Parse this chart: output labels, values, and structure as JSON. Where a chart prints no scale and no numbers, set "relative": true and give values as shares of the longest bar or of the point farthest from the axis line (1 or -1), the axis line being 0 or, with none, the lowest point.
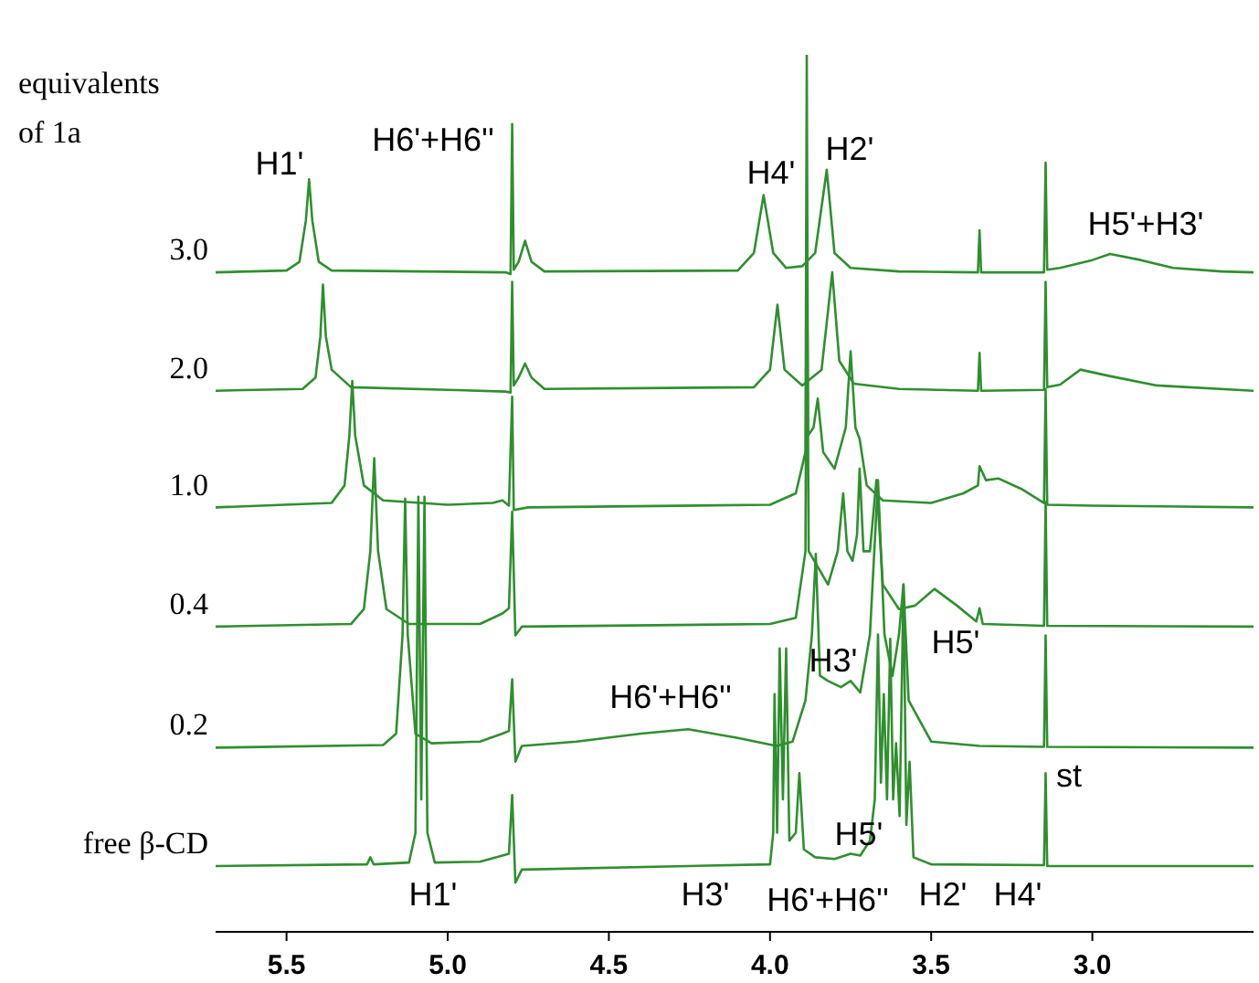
{
  "chart_data": {
    "type": "line",
    "relative": true,
    "legend_title": "equivalents of 1a",
    "tick_labels": "x",
    "xlim": [
      5.72,
      2.5
    ],
    "xticks": [
      5.5,
      {
        "value": 5.0,
        "label": "5.0"
      },
      4.5,
      {
        "value": 4.0,
        "label": "4.0"
      },
      3.5,
      {
        "value": 3.0,
        "label": "3.0"
      }
    ],
    "series": [
      {
        "name": "3.0",
        "color": "#2f8f2f",
        "x": [
          5.72,
          5.5,
          5.46,
          5.44,
          5.43,
          5.42,
          5.4,
          5.36,
          4.82,
          4.805,
          4.8,
          4.795,
          4.78,
          4.76,
          4.74,
          4.7,
          4.1,
          4.05,
          4.02,
          3.99,
          3.95,
          3.9,
          3.86,
          3.824,
          3.8,
          3.75,
          3.6,
          3.355,
          3.35,
          3.345,
          3.15,
          3.145,
          3.14,
          3.1,
          3.0,
          2.945,
          2.85,
          2.75,
          2.6,
          2.5
        ],
        "values": [
          0.752,
          0.754,
          0.764,
          0.811,
          0.858,
          0.811,
          0.764,
          0.754,
          0.752,
          0.75,
          0.921,
          0.755,
          0.764,
          0.788,
          0.764,
          0.753,
          0.754,
          0.774,
          0.84,
          0.774,
          0.757,
          0.759,
          0.774,
          0.869,
          0.774,
          0.757,
          0.753,
          0.752,
          0.8,
          0.752,
          0.752,
          0.877,
          0.755,
          0.757,
          0.766,
          0.773,
          0.766,
          0.757,
          0.753,
          0.752
        ]
      },
      {
        "name": "2.0",
        "color": "#2f8f2f",
        "x": [
          5.72,
          5.45,
          5.41,
          5.395,
          5.387,
          5.378,
          5.36,
          5.3,
          5.0,
          4.82,
          4.805,
          4.8,
          4.795,
          4.78,
          4.76,
          4.74,
          4.7,
          4.05,
          4.0,
          3.977,
          3.955,
          3.9,
          3.84,
          3.807,
          3.785,
          3.74,
          3.6,
          3.355,
          3.35,
          3.345,
          3.15,
          3.145,
          3.14,
          3.1,
          3.037,
          2.95,
          2.8,
          2.5
        ],
        "values": [
          0.617,
          0.619,
          0.632,
          0.679,
          0.738,
          0.679,
          0.641,
          0.621,
          0.618,
          0.616,
          0.615,
          0.741,
          0.623,
          0.632,
          0.648,
          0.632,
          0.619,
          0.621,
          0.641,
          0.715,
          0.641,
          0.623,
          0.641,
          0.752,
          0.651,
          0.625,
          0.619,
          0.617,
          0.66,
          0.617,
          0.618,
          0.741,
          0.621,
          0.624,
          0.641,
          0.634,
          0.623,
          0.617
        ]
      },
      {
        "name": "1.0",
        "color": "#2f8f2f",
        "x": [
          5.72,
          5.36,
          5.32,
          5.305,
          5.296,
          5.287,
          5.26,
          5.2,
          5.0,
          4.86,
          4.83,
          4.81,
          4.8,
          4.795,
          4.75,
          4.0,
          3.92,
          3.89,
          3.886,
          3.882,
          3.865,
          3.852,
          3.835,
          3.8,
          3.765,
          3.75,
          3.735,
          3.722,
          3.7,
          3.65,
          3.5,
          3.4,
          3.355,
          3.35,
          3.33,
          3.292,
          3.22,
          3.15,
          3.145,
          3.14,
          3.0,
          2.5
        ],
        "values": [
          0.484,
          0.489,
          0.509,
          0.566,
          0.628,
          0.566,
          0.509,
          0.492,
          0.487,
          0.489,
          0.492,
          0.486,
          0.61,
          0.481,
          0.484,
          0.487,
          0.5,
          0.547,
          1.0,
          0.566,
          0.575,
          0.608,
          0.547,
          0.528,
          0.575,
          0.662,
          0.575,
          0.562,
          0.509,
          0.492,
          0.489,
          0.5,
          0.509,
          0.531,
          0.515,
          0.517,
          0.505,
          0.489,
          0.619,
          0.487,
          0.486,
          0.484
        ]
      },
      {
        "name": "0.4",
        "color": "#2f8f2f",
        "x": [
          5.72,
          5.3,
          5.26,
          5.24,
          5.228,
          5.216,
          5.19,
          5.12,
          4.9,
          4.83,
          4.81,
          4.8,
          4.79,
          4.77,
          4.0,
          3.92,
          3.89,
          3.886,
          3.88,
          3.82,
          3.79,
          3.773,
          3.76,
          3.744,
          3.73,
          3.722,
          3.71,
          3.69,
          3.67,
          3.65,
          3.6,
          3.55,
          3.49,
          3.42,
          3.36,
          3.35,
          3.34,
          3.15,
          3.145,
          3.14,
          2.5
        ],
        "values": [
          0.348,
          0.351,
          0.368,
          0.434,
          0.54,
          0.434,
          0.368,
          0.351,
          0.351,
          0.363,
          0.369,
          0.479,
          0.338,
          0.348,
          0.351,
          0.358,
          0.434,
          0.811,
          0.434,
          0.396,
          0.434,
          0.5,
          0.434,
          0.423,
          0.453,
          0.528,
          0.434,
          0.434,
          0.515,
          0.396,
          0.368,
          0.372,
          0.391,
          0.372,
          0.354,
          0.369,
          0.351,
          0.349,
          0.49,
          0.349,
          0.348
        ]
      },
      {
        "name": "0.2",
        "color": "#2f8f2f",
        "x": [
          5.72,
          5.2,
          5.16,
          5.14,
          5.132,
          5.124,
          5.1,
          5.05,
          4.9,
          4.83,
          4.81,
          4.8,
          4.79,
          4.77,
          4.6,
          4.4,
          4.254,
          4.1,
          3.98,
          3.93,
          3.89,
          3.87,
          3.858,
          3.845,
          3.82,
          3.78,
          3.75,
          3.72,
          3.69,
          3.665,
          3.645,
          3.62,
          3.6,
          3.586,
          3.57,
          3.5,
          3.35,
          3.15,
          3.145,
          3.14,
          2.5
        ],
        "values": [
          0.21,
          0.213,
          0.226,
          0.339,
          0.494,
          0.339,
          0.226,
          0.215,
          0.217,
          0.226,
          0.229,
          0.288,
          0.194,
          0.212,
          0.217,
          0.226,
          0.231,
          0.221,
          0.212,
          0.217,
          0.264,
          0.339,
          0.431,
          0.292,
          0.286,
          0.279,
          0.286,
          0.273,
          0.339,
          0.515,
          0.339,
          0.292,
          0.339,
          0.396,
          0.264,
          0.217,
          0.212,
          0.211,
          0.338,
          0.211,
          0.21
        ]
      },
      {
        "name": "free β-CD",
        "color": "#2f8f2f",
        "x": [
          5.72,
          5.25,
          5.24,
          5.23,
          5.12,
          5.1,
          5.091,
          5.082,
          5.072,
          5.063,
          5.04,
          4.9,
          4.83,
          4.81,
          4.8,
          4.79,
          4.77,
          4.0,
          3.99,
          3.986,
          3.978,
          3.97,
          3.96,
          3.95,
          3.94,
          3.92,
          3.909,
          3.895,
          3.86,
          3.8,
          3.75,
          3.72,
          3.69,
          3.675,
          3.665,
          3.656,
          3.647,
          3.637,
          3.627,
          3.618,
          3.609,
          3.598,
          3.586,
          3.577,
          3.567,
          3.555,
          3.5,
          3.15,
          3.145,
          3.14,
          2.5
        ],
        "values": [
          0.075,
          0.077,
          0.085,
          0.077,
          0.079,
          0.113,
          0.496,
          0.151,
          0.496,
          0.113,
          0.079,
          0.08,
          0.087,
          0.089,
          0.156,
          0.056,
          0.071,
          0.077,
          0.113,
          0.271,
          0.113,
          0.323,
          0.151,
          0.323,
          0.104,
          0.113,
          0.181,
          0.094,
          0.085,
          0.083,
          0.089,
          0.087,
          0.104,
          0.151,
          0.339,
          0.17,
          0.271,
          0.151,
          0.334,
          0.151,
          0.215,
          0.132,
          0.396,
          0.122,
          0.194,
          0.085,
          0.077,
          0.076,
          0.181,
          0.075,
          0.075
        ]
      }
    ],
    "annotations": [
      "H1'",
      "H6'+H6''",
      "H4'",
      "H2'",
      "H5'+H3'",
      "H6'+H6''",
      "H3'",
      "H5'",
      "st",
      "H5'",
      "H1'",
      "H3'",
      "H6'+H6''",
      "H2'",
      "H4'"
    ]
  }
}
